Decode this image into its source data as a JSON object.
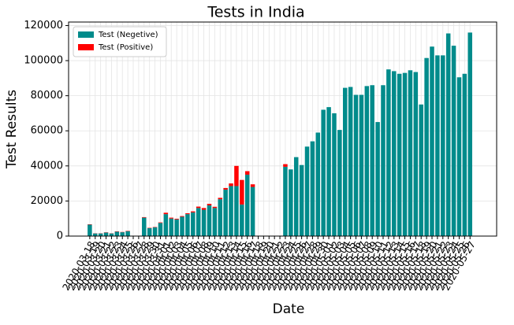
{
  "chart_data": {
    "type": "bar",
    "stacked": true,
    "title": "Tests in India",
    "x_label": "Date",
    "y_label": "Test Results",
    "categories": [
      "2020-03-18",
      "2020-03-19",
      "2020-03-20",
      "2020-03-21",
      "2020-03-22",
      "2020-03-23",
      "2020-03-24",
      "2020-03-25",
      "2020-03-26",
      "2020-03-27",
      "2020-03-28",
      "2020-03-29",
      "2020-03-30",
      "2020-03-31",
      "2020-04-01",
      "2020-04-02",
      "2020-04-03",
      "2020-04-04",
      "2020-04-05",
      "2020-04-06",
      "2020-04-07",
      "2020-04-08",
      "2020-04-09",
      "2020-04-10",
      "2020-04-11",
      "2020-04-12",
      "2020-04-13",
      "2020-04-14",
      "2020-04-15",
      "2020-04-16",
      "2020-04-17",
      "2020-04-18",
      "2020-04-19",
      "2020-04-20",
      "2020-04-21",
      "2020-04-22",
      "2020-04-23",
      "2020-04-24",
      "2020-04-25",
      "2020-04-26",
      "2020-04-27",
      "2020-04-28",
      "2020-04-29",
      "2020-04-30",
      "2020-05-01",
      "2020-05-02",
      "2020-05-03",
      "2020-05-04",
      "2020-05-05",
      "2020-05-06",
      "2020-05-07",
      "2020-05-08",
      "2020-05-09",
      "2020-05-10",
      "2020-05-11",
      "2020-05-12",
      "2020-05-13",
      "2020-05-14",
      "2020-05-15",
      "2020-05-16",
      "2020-05-17",
      "2020-05-18",
      "2020-05-19",
      "2020-05-20",
      "2020-05-21",
      "2020-05-22",
      "2020-05-23",
      "2020-05-24",
      "2020-05-25",
      "2020-05-26",
      "2020-05-27"
    ],
    "series": [
      {
        "name": "Test (Negetive)",
        "color": "#008b8b",
        "values": [
          6500,
          1500,
          1500,
          2000,
          1500,
          2500,
          2200,
          2800,
          null,
          null,
          10500,
          4500,
          5000,
          7500,
          12500,
          10000,
          9500,
          11000,
          12500,
          13500,
          16000,
          15000,
          17500,
          16000,
          21000,
          26500,
          28500,
          28500,
          18000,
          35000,
          28000,
          null,
          null,
          null,
          null,
          null,
          39500,
          38000,
          45000,
          40500,
          51000,
          54000,
          59000,
          72000,
          73500,
          70000,
          60500,
          84500,
          85000,
          80500,
          80500,
          85500,
          86000,
          65000,
          86000,
          95000,
          94000,
          92500,
          93000,
          94500,
          93500,
          75000,
          101500,
          108000,
          103000,
          103000,
          115500,
          108500,
          90500,
          92500,
          116000
        ]
      },
      {
        "name": "Test (Positive)",
        "color": "#ff0000",
        "values": [
          200,
          100,
          100,
          150,
          100,
          200,
          150,
          200,
          null,
          null,
          300,
          200,
          200,
          300,
          800,
          500,
          400,
          400,
          500,
          600,
          800,
          1000,
          900,
          700,
          800,
          900,
          1500,
          11500,
          14000,
          2000,
          1500,
          null,
          null,
          null,
          null,
          null,
          1500,
          0,
          0,
          0,
          0,
          0,
          0,
          0,
          0,
          0,
          0,
          0,
          0,
          0,
          0,
          0,
          0,
          0,
          0,
          0,
          0,
          0,
          0,
          0,
          0,
          0,
          0,
          0,
          0,
          0,
          0,
          0,
          0,
          0,
          0
        ]
      }
    ],
    "ylim": [
      0,
      122000
    ],
    "yticks": [
      0,
      20000,
      40000,
      60000,
      80000,
      100000,
      120000
    ],
    "grid": true,
    "legend": "upper left"
  }
}
